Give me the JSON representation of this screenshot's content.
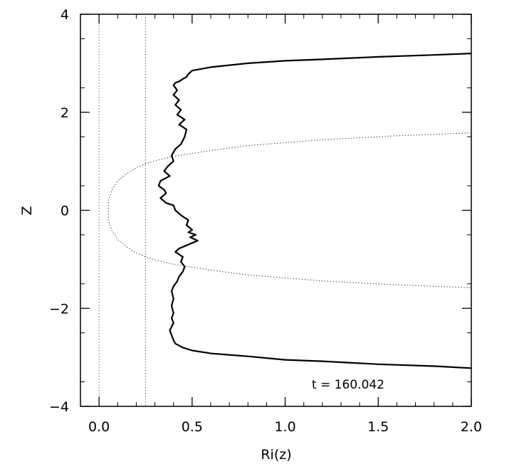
{
  "chart_data": {
    "type": "line",
    "xlabel": "Ri(z)",
    "ylabel": "Z",
    "xlim": [
      -0.1,
      2.0
    ],
    "ylim": [
      -4,
      4
    ],
    "x_ticks": [
      0.0,
      0.5,
      1.0,
      1.5,
      2.0
    ],
    "x_tick_labels": [
      "0.0",
      "0.5",
      "1.0",
      "1.5",
      "2.0"
    ],
    "y_ticks": [
      -4,
      -2,
      0,
      2,
      4
    ],
    "y_tick_labels": [
      "−4",
      "−2",
      "0",
      "2",
      "4"
    ],
    "annotation": "t  =  160.042",
    "grid": false,
    "reference_lines_x": [
      0.0,
      0.25
    ],
    "series": [
      {
        "style": "solid",
        "points": [
          [
            2.0,
            3.2
          ],
          [
            1.8,
            3.17
          ],
          [
            1.5,
            3.13
          ],
          [
            1.2,
            3.08
          ],
          [
            1.0,
            3.05
          ],
          [
            0.8,
            3.0
          ],
          [
            0.6,
            2.92
          ],
          [
            0.5,
            2.85
          ],
          [
            0.48,
            2.78
          ],
          [
            0.47,
            2.72
          ],
          [
            0.45,
            2.68
          ],
          [
            0.43,
            2.63
          ],
          [
            0.41,
            2.6
          ],
          [
            0.4,
            2.55
          ],
          [
            0.42,
            2.45
          ],
          [
            0.4,
            2.35
          ],
          [
            0.43,
            2.25
          ],
          [
            0.41,
            2.15
          ],
          [
            0.44,
            2.05
          ],
          [
            0.42,
            1.95
          ],
          [
            0.46,
            1.85
          ],
          [
            0.43,
            1.75
          ],
          [
            0.47,
            1.65
          ],
          [
            0.46,
            1.5
          ],
          [
            0.44,
            1.35
          ],
          [
            0.41,
            1.25
          ],
          [
            0.39,
            1.12
          ],
          [
            0.4,
            1.0
          ],
          [
            0.37,
            0.9
          ],
          [
            0.35,
            0.8
          ],
          [
            0.38,
            0.7
          ],
          [
            0.33,
            0.6
          ],
          [
            0.32,
            0.5
          ],
          [
            0.35,
            0.42
          ],
          [
            0.36,
            0.35
          ],
          [
            0.33,
            0.25
          ],
          [
            0.36,
            0.15
          ],
          [
            0.4,
            0.1
          ],
          [
            0.41,
            0.0
          ],
          [
            0.44,
            -0.1
          ],
          [
            0.48,
            -0.2
          ],
          [
            0.47,
            -0.3
          ],
          [
            0.5,
            -0.4
          ],
          [
            0.48,
            -0.45
          ],
          [
            0.52,
            -0.5
          ],
          [
            0.49,
            -0.55
          ],
          [
            0.53,
            -0.62
          ],
          [
            0.48,
            -0.7
          ],
          [
            0.43,
            -0.78
          ],
          [
            0.41,
            -0.85
          ],
          [
            0.45,
            -0.95
          ],
          [
            0.44,
            -1.05
          ],
          [
            0.46,
            -1.15
          ],
          [
            0.45,
            -1.25
          ],
          [
            0.43,
            -1.35
          ],
          [
            0.42,
            -1.45
          ],
          [
            0.4,
            -1.55
          ],
          [
            0.39,
            -1.65
          ],
          [
            0.4,
            -1.8
          ],
          [
            0.39,
            -1.95
          ],
          [
            0.4,
            -2.1
          ],
          [
            0.39,
            -2.2
          ],
          [
            0.4,
            -2.3
          ],
          [
            0.38,
            -2.45
          ],
          [
            0.39,
            -2.55
          ],
          [
            0.4,
            -2.65
          ],
          [
            0.41,
            -2.72
          ],
          [
            0.45,
            -2.8
          ],
          [
            0.5,
            -2.86
          ],
          [
            0.6,
            -2.92
          ],
          [
            0.8,
            -2.98
          ],
          [
            1.0,
            -3.05
          ],
          [
            1.2,
            -3.08
          ],
          [
            1.5,
            -3.14
          ],
          [
            1.8,
            -3.18
          ],
          [
            2.0,
            -3.22
          ]
        ]
      },
      {
        "style": "dotted",
        "points": [
          [
            2.0,
            1.58
          ],
          [
            1.6,
            1.52
          ],
          [
            1.2,
            1.44
          ],
          [
            0.8,
            1.32
          ],
          [
            0.6,
            1.22
          ],
          [
            0.4,
            1.1
          ],
          [
            0.3,
            1.01
          ],
          [
            0.25,
            0.95
          ],
          [
            0.2,
            0.87
          ],
          [
            0.15,
            0.75
          ],
          [
            0.1,
            0.6
          ],
          [
            0.07,
            0.42
          ],
          [
            0.05,
            0.2
          ],
          [
            0.05,
            0.0
          ],
          [
            0.05,
            -0.2
          ],
          [
            0.07,
            -0.42
          ],
          [
            0.1,
            -0.6
          ],
          [
            0.15,
            -0.75
          ],
          [
            0.2,
            -0.87
          ],
          [
            0.25,
            -0.95
          ],
          [
            0.3,
            -1.01
          ],
          [
            0.4,
            -1.1
          ],
          [
            0.6,
            -1.22
          ],
          [
            0.8,
            -1.32
          ],
          [
            1.2,
            -1.44
          ],
          [
            1.6,
            -1.52
          ],
          [
            2.0,
            -1.58
          ]
        ]
      }
    ]
  }
}
